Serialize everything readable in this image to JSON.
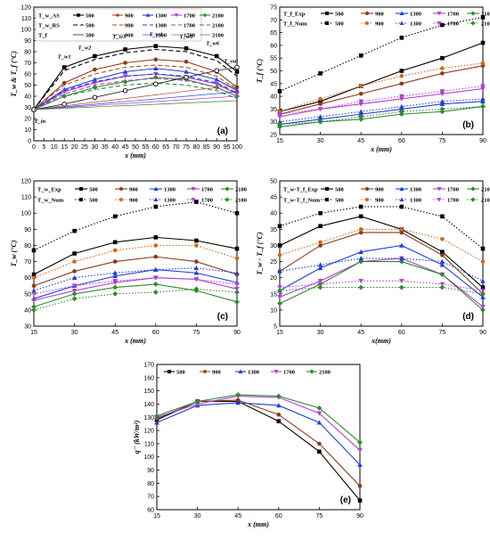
{
  "colors": {
    "500": "#000000",
    "900": "#b5451b",
    "1300": "#1f3fd6",
    "1700": "#b040d0",
    "2100": "#2e8b2e",
    "exp900": "#8b3a1a",
    "num900": "#d2691e"
  },
  "chart_data": [
    {
      "id": "a",
      "panel_label": "(a)",
      "type": "line",
      "xlabel": "x (mm)",
      "ylabel": "T_w & T_f (°C)",
      "xlim": [
        0,
        100
      ],
      "ylim": [
        0,
        120
      ],
      "xticks": [
        0,
        5,
        10,
        15,
        20,
        25,
        30,
        35,
        40,
        45,
        50,
        55,
        60,
        65,
        70,
        75,
        80,
        85,
        90,
        95,
        100
      ],
      "yticks": [
        0,
        10,
        20,
        30,
        40,
        50,
        60,
        70,
        80,
        90,
        100,
        110,
        120
      ],
      "legend_rows": [
        {
          "label": "T_w_AS",
          "style": "solid"
        },
        {
          "label": "T_w_RS",
          "style": "dashed"
        },
        {
          "label": "T_f",
          "style": "thin"
        }
      ],
      "flow_rates": [
        "500",
        "900",
        "1300",
        "1700",
        "2100"
      ],
      "annotations": [
        "T_w1",
        "T_w2",
        "T_w3",
        "T_w4",
        "T_w5",
        "T_w6",
        "T_out",
        "T_in"
      ],
      "series": [
        {
          "name": "T_w_AS 500",
          "flow": "500",
          "style": "solid",
          "marker": "square",
          "x": [
            0,
            15,
            30,
            45,
            60,
            75,
            90,
            100
          ],
          "y": [
            28,
            66,
            76,
            82,
            85,
            83,
            76,
            62
          ]
        },
        {
          "name": "T_w_AS 900",
          "flow": "900",
          "style": "solid",
          "marker": "circle",
          "x": [
            0,
            15,
            30,
            45,
            60,
            75,
            90,
            100
          ],
          "y": [
            28,
            52,
            64,
            70,
            73,
            71,
            62,
            48
          ]
        },
        {
          "name": "T_w_AS 1300",
          "flow": "1300",
          "style": "solid",
          "marker": "triangle",
          "x": [
            0,
            15,
            30,
            45,
            60,
            75,
            90,
            100
          ],
          "y": [
            28,
            46,
            55,
            62,
            65,
            62,
            55,
            45
          ]
        },
        {
          "name": "T_w_AS 1700",
          "flow": "1700",
          "style": "solid",
          "marker": "tri-down",
          "x": [
            0,
            15,
            30,
            45,
            60,
            75,
            90,
            100
          ],
          "y": [
            28,
            44,
            52,
            58,
            60,
            57,
            51,
            42
          ]
        },
        {
          "name": "T_w_AS 2100",
          "flow": "2100",
          "style": "solid",
          "marker": "diamond",
          "x": [
            0,
            15,
            30,
            45,
            60,
            75,
            90,
            100
          ],
          "y": [
            28,
            40,
            48,
            53,
            57,
            55,
            48,
            40
          ]
        },
        {
          "name": "T_w_RS 500",
          "flow": "500",
          "style": "dashed",
          "marker": "none",
          "x": [
            0,
            15,
            30,
            45,
            60,
            75,
            90,
            100
          ],
          "y": [
            28,
            63,
            73,
            79,
            82,
            80,
            72,
            58
          ]
        },
        {
          "name": "T_w_RS 900",
          "flow": "900",
          "style": "dashed",
          "marker": "none",
          "x": [
            0,
            15,
            30,
            45,
            60,
            75,
            90,
            100
          ],
          "y": [
            28,
            50,
            60,
            66,
            68,
            66,
            58,
            46
          ]
        },
        {
          "name": "T_w_RS 1300",
          "flow": "1300",
          "style": "dashed",
          "marker": "none",
          "x": [
            0,
            15,
            30,
            45,
            60,
            75,
            90,
            100
          ],
          "y": [
            28,
            45,
            53,
            58,
            60,
            58,
            52,
            43
          ]
        },
        {
          "name": "T_w_RS 1700",
          "flow": "1700",
          "style": "dashed",
          "marker": "none",
          "x": [
            0,
            15,
            30,
            45,
            60,
            75,
            90,
            100
          ],
          "y": [
            28,
            42,
            50,
            54,
            56,
            54,
            48,
            40
          ]
        },
        {
          "name": "T_w_RS 2100",
          "flow": "2100",
          "style": "dashed",
          "marker": "none",
          "x": [
            0,
            15,
            30,
            45,
            60,
            75,
            90,
            100
          ],
          "y": [
            28,
            40,
            46,
            50,
            52,
            50,
            45,
            38
          ]
        },
        {
          "name": "T_f 500",
          "flow": "500",
          "style": "thin",
          "marker": "circle-open",
          "x": [
            0,
            15,
            30,
            45,
            60,
            75,
            90,
            100
          ],
          "y": [
            28,
            33,
            39,
            45,
            51,
            57,
            63,
            66
          ]
        },
        {
          "name": "T_f 900",
          "flow": "900",
          "style": "thin",
          "marker": "none",
          "x": [
            0,
            100
          ],
          "y": [
            28,
            50
          ]
        },
        {
          "name": "T_f 1300",
          "flow": "1300",
          "style": "thin",
          "marker": "none",
          "x": [
            0,
            100
          ],
          "y": [
            28,
            44
          ]
        },
        {
          "name": "T_f 1700",
          "flow": "1700",
          "style": "thin",
          "marker": "none",
          "x": [
            0,
            100
          ],
          "y": [
            28,
            40
          ]
        },
        {
          "name": "T_f 2100",
          "flow": "2100",
          "style": "thin",
          "marker": "none",
          "x": [
            0,
            100
          ],
          "y": [
            28,
            36
          ]
        }
      ]
    },
    {
      "id": "b",
      "panel_label": "(b)",
      "type": "line",
      "xlabel": "x (mm)",
      "ylabel": "T_f (°C)",
      "xlim": [
        15,
        90
      ],
      "ylim": [
        25,
        75
      ],
      "xticks": [
        15,
        30,
        45,
        60,
        75,
        90
      ],
      "yticks": [
        25,
        30,
        35,
        40,
        45,
        50,
        55,
        60,
        65,
        70,
        75
      ],
      "legend_rows": [
        {
          "label": "T_f_Exp",
          "style": "solid"
        },
        {
          "label": "T_f_Num",
          "style": "dotted"
        }
      ],
      "flow_rates": [
        "500",
        "900",
        "1300",
        "1700",
        "2100"
      ],
      "x": [
        15,
        30,
        45,
        60,
        75,
        90
      ],
      "series": [
        {
          "name": "Exp 500",
          "flow": "500",
          "style": "solid",
          "y": [
            34,
            38,
            44,
            50,
            55,
            61
          ]
        },
        {
          "name": "Exp 900",
          "flow": "900",
          "style": "solid",
          "y": [
            33,
            37,
            41,
            45,
            49,
            52
          ]
        },
        {
          "name": "Exp 1300",
          "flow": "1300",
          "style": "solid",
          "y": [
            29,
            31,
            33,
            35,
            37,
            38
          ]
        },
        {
          "name": "Exp 1700",
          "flow": "1700",
          "style": "solid",
          "y": [
            32,
            35,
            37,
            39,
            41,
            43
          ]
        },
        {
          "name": "Exp 2100",
          "flow": "2100",
          "style": "solid",
          "y": [
            28,
            30,
            31,
            33,
            34,
            36
          ]
        },
        {
          "name": "Num 500",
          "flow": "500",
          "style": "dotted",
          "y": [
            42,
            49,
            56,
            63,
            68,
            71
          ]
        },
        {
          "name": "Num 900",
          "flow": "900",
          "style": "dotted",
          "y": [
            34,
            39,
            44,
            48,
            51,
            53
          ]
        },
        {
          "name": "Num 1300",
          "flow": "1300",
          "style": "dotted",
          "y": [
            30,
            32,
            34,
            36,
            38,
            39
          ]
        },
        {
          "name": "Num 1700",
          "flow": "1700",
          "style": "dotted",
          "y": [
            33,
            35,
            38,
            40,
            42,
            44
          ]
        },
        {
          "name": "Num 2100",
          "flow": "2100",
          "style": "dotted",
          "y": [
            29,
            30,
            32,
            34,
            35,
            36
          ]
        }
      ]
    },
    {
      "id": "c",
      "panel_label": "(c)",
      "type": "line",
      "xlabel": "x (mm)",
      "ylabel": "T_w (°C)",
      "xlim": [
        15,
        90
      ],
      "ylim": [
        30,
        120
      ],
      "xticks": [
        15,
        30,
        45,
        60,
        75,
        90
      ],
      "yticks": [
        30,
        40,
        50,
        60,
        70,
        80,
        90,
        100,
        110,
        120
      ],
      "legend_rows": [
        {
          "label": "T_w_Exp",
          "style": "solid"
        },
        {
          "label": "T_w_Num",
          "style": "dotted"
        }
      ],
      "flow_rates": [
        "500",
        "900",
        "1300",
        "1700",
        "2100"
      ],
      "x": [
        15,
        30,
        45,
        60,
        75,
        90
      ],
      "series": [
        {
          "name": "Exp 500",
          "flow": "500",
          "style": "solid",
          "y": [
            62,
            75,
            82,
            85,
            83,
            78
          ]
        },
        {
          "name": "Exp 900",
          "flow": "900",
          "style": "solid",
          "y": [
            55,
            64,
            70,
            73,
            70,
            62
          ]
        },
        {
          "name": "Exp 1300",
          "flow": "1300",
          "style": "solid",
          "y": [
            47,
            55,
            61,
            65,
            63,
            57
          ]
        },
        {
          "name": "Exp 1700",
          "flow": "1700",
          "style": "solid",
          "y": [
            46,
            52,
            57,
            60,
            59,
            53
          ]
        },
        {
          "name": "Exp 2100",
          "flow": "2100",
          "style": "solid",
          "y": [
            42,
            50,
            54,
            56,
            52,
            45
          ]
        },
        {
          "name": "Num 500",
          "flow": "500",
          "style": "dotted",
          "y": [
            77,
            89,
            98,
            104,
            107,
            100
          ]
        },
        {
          "name": "Num 900",
          "flow": "900",
          "style": "dotted",
          "y": [
            60,
            70,
            77,
            80,
            80,
            72
          ]
        },
        {
          "name": "Num 1300",
          "flow": "1300",
          "style": "dotted",
          "y": [
            52,
            60,
            63,
            65,
            66,
            63
          ]
        },
        {
          "name": "Num 1700",
          "flow": "1700",
          "style": "dotted",
          "y": [
            50,
            55,
            58,
            60,
            59,
            56
          ]
        },
        {
          "name": "Num 2100",
          "flow": "2100",
          "style": "dotted",
          "y": [
            40,
            47,
            50,
            51,
            53,
            51
          ]
        }
      ]
    },
    {
      "id": "d",
      "panel_label": "(d)",
      "type": "line",
      "xlabel": "x(mm)",
      "ylabel": "T_w - T_f (°C)",
      "xlim": [
        15,
        90
      ],
      "ylim": [
        5,
        50
      ],
      "xticks": [
        15,
        30,
        45,
        60,
        75,
        90
      ],
      "yticks": [
        5,
        10,
        15,
        20,
        25,
        30,
        35,
        40,
        45,
        50
      ],
      "legend_rows": [
        {
          "label": "T_w-T_f_Exp",
          "style": "solid"
        },
        {
          "label": "T_w-T_f_Num",
          "style": "dotted"
        }
      ],
      "flow_rates": [
        "500",
        "900",
        "1300",
        "1700",
        "2100"
      ],
      "x": [
        15,
        30,
        45,
        60,
        75,
        90
      ],
      "series": [
        {
          "name": "Exp 500",
          "flow": "500",
          "style": "solid",
          "y": [
            30,
            36,
            39,
            35,
            28,
            17
          ]
        },
        {
          "name": "Exp 900",
          "flow": "900",
          "style": "solid",
          "y": [
            22,
            30,
            34,
            34,
            27,
            15
          ]
        },
        {
          "name": "Exp 1300",
          "flow": "1300",
          "style": "solid",
          "y": [
            16,
            23,
            28,
            30,
            24,
            14
          ]
        },
        {
          "name": "Exp 1700",
          "flow": "1700",
          "style": "solid",
          "y": [
            14,
            19,
            25,
            26,
            21,
            11
          ]
        },
        {
          "name": "Exp 2100",
          "flow": "2100",
          "style": "solid",
          "y": [
            12,
            18,
            25,
            25,
            21,
            10
          ]
        },
        {
          "name": "Num 500",
          "flow": "500",
          "style": "dotted",
          "y": [
            36,
            40,
            42,
            42,
            39,
            29
          ]
        },
        {
          "name": "Num 900",
          "flow": "900",
          "style": "dotted",
          "y": [
            27,
            31,
            35,
            35,
            32,
            25
          ]
        },
        {
          "name": "Num 1300",
          "flow": "1300",
          "style": "dotted",
          "y": [
            22,
            24,
            26,
            26,
            25,
            19
          ]
        },
        {
          "name": "Num 1700",
          "flow": "1700",
          "style": "dotted",
          "y": [
            17,
            18,
            19,
            19,
            18,
            16
          ]
        },
        {
          "name": "Num 2100",
          "flow": "2100",
          "style": "dotted",
          "y": [
            16,
            17,
            17,
            17,
            17,
            15
          ]
        }
      ]
    },
    {
      "id": "e",
      "panel_label": "(e)",
      "type": "line",
      "xlabel": "x (mm)",
      "ylabel": "q'' (kW/m²)",
      "xlim": [
        15,
        90
      ],
      "ylim": [
        60,
        170
      ],
      "xticks": [
        15,
        30,
        45,
        60,
        75,
        90
      ],
      "yticks": [
        60,
        70,
        80,
        90,
        100,
        110,
        120,
        130,
        140,
        150,
        160,
        170
      ],
      "x": [
        15,
        30,
        45,
        60,
        75,
        90
      ],
      "series": [
        {
          "name": "500",
          "flow": "500",
          "style": "solid",
          "y": [
            128,
            142,
            142,
            127,
            104,
            67
          ]
        },
        {
          "name": "900",
          "flow": "900",
          "style": "solid",
          "y": [
            129,
            142,
            143,
            132,
            110,
            78
          ]
        },
        {
          "name": "1300",
          "flow": "1300",
          "style": "solid",
          "y": [
            126,
            139,
            141,
            139,
            126,
            94
          ]
        },
        {
          "name": "1700",
          "flow": "1700",
          "style": "solid",
          "y": [
            130,
            140,
            146,
            145,
            133,
            105
          ]
        },
        {
          "name": "2100",
          "flow": "2100",
          "style": "solid",
          "y": [
            131,
            142,
            147,
            146,
            137,
            111
          ]
        }
      ]
    }
  ]
}
